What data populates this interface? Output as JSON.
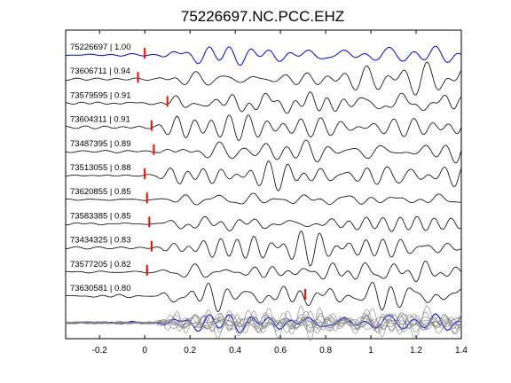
{
  "chart_data": {
    "type": "line",
    "title": "75226697.NC.PCC.EHZ",
    "xlabel": "",
    "ylabel": "",
    "xlim": [
      -0.35,
      1.4
    ],
    "x_ticks": [
      "-0.2",
      "0",
      "0.2",
      "0.4",
      "0.6",
      "0.8",
      "1",
      "1.2",
      "1.4"
    ],
    "x_tick_values": [
      -0.2,
      0,
      0.2,
      0.4,
      0.6,
      0.8,
      1.0,
      1.2,
      1.4
    ],
    "grid": false,
    "colors": {
      "reference": "#0000ff",
      "trace": "#000000",
      "pick": "#ff0000",
      "stack": "#808080"
    },
    "series": [
      {
        "name": "75226697 | 1.00",
        "pick_time": 0.0
      },
      {
        "name": "73606711 | 0.94",
        "pick_time": -0.03
      },
      {
        "name": "73579595 | 0.91",
        "pick_time": 0.1
      },
      {
        "name": "73604311 | 0.91",
        "pick_time": 0.03
      },
      {
        "name": "73487395 | 0.89",
        "pick_time": 0.04
      },
      {
        "name": "73513055 | 0.88",
        "pick_time": 0.0
      },
      {
        "name": "73620855 | 0.85",
        "pick_time": 0.01
      },
      {
        "name": "73583385 | 0.85",
        "pick_time": 0.02
      },
      {
        "name": "73434325 | 0.83",
        "pick_time": 0.03
      },
      {
        "name": "73577205 | 0.82",
        "pick_time": 0.01
      },
      {
        "name": "73630581 | 0.80",
        "pick_time": 0.71
      }
    ]
  }
}
